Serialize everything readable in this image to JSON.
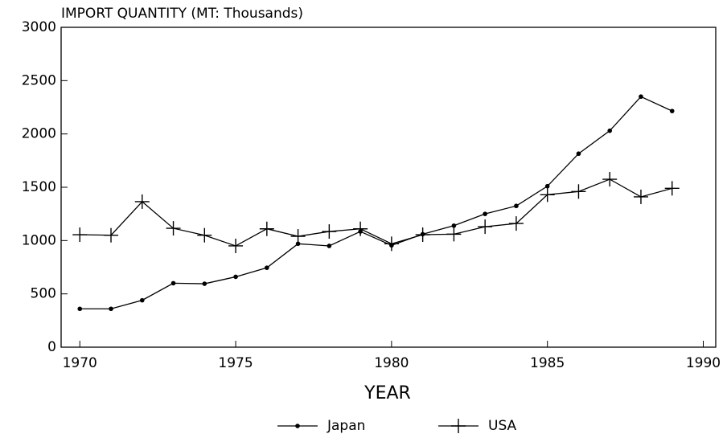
{
  "chart_data": {
    "type": "line",
    "title": "IMPORT QUANTITY (MT: Thousands)",
    "x_label": "YEAR",
    "x": [
      1970,
      1971,
      1972,
      1973,
      1974,
      1975,
      1976,
      1977,
      1978,
      1979,
      1980,
      1981,
      1982,
      1983,
      1984,
      1985,
      1986,
      1987,
      1988,
      1989
    ],
    "series": [
      {
        "name": "Japan",
        "color": "#000000",
        "marker": "dot",
        "values": [
          360,
          360,
          440,
          600,
          595,
          660,
          745,
          970,
          950,
          1085,
          955,
          1060,
          1140,
          1250,
          1325,
          1510,
          1815,
          2030,
          2350,
          2215
        ]
      },
      {
        "name": "USA",
        "color": "#000000",
        "marker": "plus",
        "values": [
          1055,
          1050,
          1365,
          1115,
          1050,
          950,
          1110,
          1040,
          1085,
          1110,
          970,
          1055,
          1060,
          1130,
          1160,
          1430,
          1460,
          1575,
          1410,
          1490
        ]
      }
    ],
    "xlim": [
      1969.4,
      1990.4
    ],
    "xticks": [
      1970,
      1975,
      1980,
      1985,
      1990
    ],
    "ylim": [
      0,
      3000
    ],
    "yticks": [
      0,
      500,
      1000,
      1500,
      2000,
      2500,
      3000
    ],
    "grid": false,
    "legend": "bottom"
  }
}
